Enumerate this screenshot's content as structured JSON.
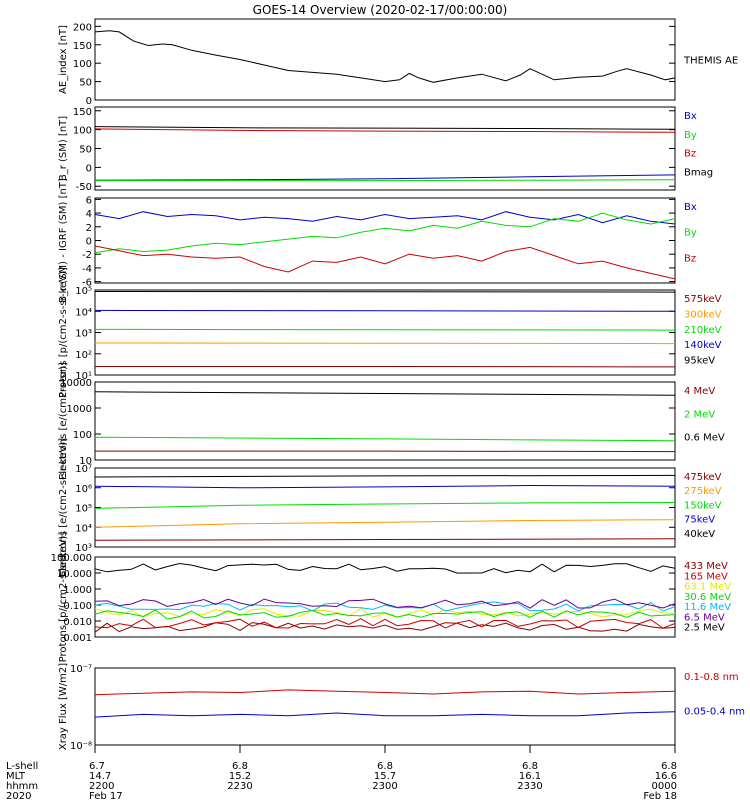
{
  "title": "GOES-14 Overview (2020-02-17/00:00:00)",
  "time_axis": {
    "row_labels": [
      "L-shell",
      "MLT",
      "hhmm",
      "2020"
    ],
    "ticks": [
      {
        "lshell": "6.7",
        "mlt": "14.7",
        "hhmm": "2200",
        "date": "Feb 17"
      },
      {
        "lshell": "6.8",
        "mlt": "15.2",
        "hhmm": "2230",
        "date": ""
      },
      {
        "lshell": "6.8",
        "mlt": "15.7",
        "hhmm": "2300",
        "date": ""
      },
      {
        "lshell": "6.8",
        "mlt": "16.1",
        "hhmm": "2330",
        "date": ""
      },
      {
        "lshell": "6.8",
        "mlt": "16.6",
        "hhmm": "0000",
        "date": "Feb 18"
      }
    ]
  },
  "colors": {
    "black": "#000000",
    "red": "#cc0000",
    "green": "#00dd00",
    "blue": "#0000cc",
    "orange": "#ff9900",
    "yellow": "#e8e800",
    "cyan": "#00bbee",
    "purple": "#660099",
    "darkred": "#880000",
    "brown": "#993300"
  },
  "chart_data": [
    {
      "type": "line",
      "ylabel": "AE_index [nT]",
      "yscale": "linear",
      "ylim": [
        0,
        220
      ],
      "yticks": [
        0,
        50,
        100,
        150,
        200
      ],
      "ytick_labels": [
        "0",
        "50",
        "100",
        "150",
        "200"
      ],
      "xlim": [
        0,
        120
      ],
      "series": [
        {
          "name": "THEMIS AE",
          "color": "#000000",
          "x": [
            0,
            3,
            5,
            8,
            11,
            14,
            16,
            20,
            25,
            30,
            35,
            40,
            45,
            50,
            55,
            60,
            63,
            65,
            67,
            70,
            75,
            80,
            85,
            88,
            90,
            95,
            100,
            105,
            108,
            110,
            115,
            118,
            120
          ],
          "y": [
            185,
            188,
            185,
            160,
            148,
            152,
            150,
            135,
            122,
            110,
            95,
            80,
            75,
            70,
            60,
            50,
            55,
            72,
            60,
            48,
            60,
            70,
            52,
            68,
            85,
            55,
            62,
            65,
            78,
            85,
            68,
            55,
            60
          ]
        }
      ]
    },
    {
      "type": "line",
      "ylabel": "B_r (SM) [nT]",
      "yscale": "linear",
      "ylim": [
        -60,
        160
      ],
      "yticks": [
        -50,
        0,
        50,
        100,
        150
      ],
      "ytick_labels": [
        "-50",
        "0",
        "50",
        "100",
        "150"
      ],
      "xlim": [
        0,
        120
      ],
      "series": [
        {
          "name": "Bx",
          "color": "#0000cc",
          "x": [
            0,
            30,
            60,
            90,
            120
          ],
          "y": [
            -34,
            -33,
            -30,
            -25,
            -20
          ]
        },
        {
          "name": "By",
          "color": "#00dd00",
          "x": [
            0,
            30,
            60,
            90,
            120
          ],
          "y": [
            -35,
            -35,
            -35,
            -34,
            -33
          ]
        },
        {
          "name": "Bz",
          "color": "#cc0000",
          "x": [
            0,
            30,
            60,
            90,
            120
          ],
          "y": [
            102,
            98,
            96,
            95,
            93
          ]
        },
        {
          "name": "Bmag",
          "color": "#000000",
          "x": [
            0,
            30,
            60,
            90,
            120
          ],
          "y": [
            108,
            105,
            104,
            103,
            101
          ]
        }
      ]
    },
    {
      "type": "line",
      "ylabel": "B_r (SM) - IGRF (SM) [nT]",
      "yscale": "linear",
      "ylim": [
        -6.2,
        6.2
      ],
      "yticks": [
        -6,
        -4,
        -2,
        0,
        2,
        4,
        6
      ],
      "ytick_labels": [
        "-6",
        "-4",
        "-2",
        "0",
        "2",
        "4",
        "6"
      ],
      "xlim": [
        0,
        120
      ],
      "series": [
        {
          "name": "Bx",
          "color": "#0000cc",
          "x": [
            0,
            5,
            10,
            15,
            20,
            25,
            30,
            35,
            40,
            45,
            50,
            55,
            60,
            65,
            70,
            75,
            80,
            85,
            90,
            95,
            100,
            105,
            110,
            115,
            120
          ],
          "y": [
            3.8,
            3.2,
            4.2,
            3.5,
            3.8,
            3.6,
            3.0,
            3.4,
            3.2,
            2.8,
            3.5,
            3.0,
            3.8,
            3.2,
            3.4,
            3.6,
            3.0,
            4.2,
            3.4,
            3.0,
            3.8,
            2.6,
            3.6,
            2.8,
            2.4
          ]
        },
        {
          "name": "By",
          "color": "#00dd00",
          "x": [
            0,
            5,
            10,
            15,
            20,
            25,
            30,
            35,
            40,
            45,
            50,
            55,
            60,
            65,
            70,
            75,
            80,
            85,
            90,
            95,
            100,
            105,
            110,
            115,
            120
          ],
          "y": [
            -1.8,
            -1.2,
            -1.6,
            -1.4,
            -0.8,
            -0.4,
            -0.6,
            -0.2,
            0.2,
            0.6,
            0.4,
            1.2,
            1.8,
            1.4,
            2.2,
            1.8,
            2.8,
            2.2,
            2.0,
            3.2,
            2.8,
            4.0,
            3.0,
            2.4,
            3.2
          ]
        },
        {
          "name": "Bz",
          "color": "#cc0000",
          "x": [
            0,
            5,
            10,
            15,
            20,
            25,
            30,
            35,
            40,
            45,
            50,
            55,
            60,
            65,
            70,
            75,
            80,
            85,
            90,
            95,
            100,
            105,
            110,
            115,
            120
          ],
          "y": [
            -0.8,
            -1.5,
            -2.2,
            -2.0,
            -2.4,
            -2.6,
            -2.4,
            -3.8,
            -4.6,
            -3.0,
            -3.2,
            -2.4,
            -3.4,
            -2.0,
            -2.6,
            -2.2,
            -3.0,
            -1.6,
            -1.0,
            -2.2,
            -3.4,
            -3.0,
            -4.0,
            -4.8,
            -5.6
          ]
        }
      ]
    },
    {
      "type": "line",
      "ylabel": "Protons [p/(cm2-s-sr-keV)]",
      "yscale": "log",
      "ylim": [
        10,
        100000
      ],
      "yticks": [
        10,
        100,
        1000,
        10000,
        100000
      ],
      "ytick_labels": [
        "10¹",
        "10²",
        "10³",
        "10⁴",
        "10⁵"
      ],
      "xlim": [
        0,
        120
      ],
      "series": [
        {
          "name": "575keV",
          "color": "#880000",
          "x": [
            0,
            60,
            120
          ],
          "y": [
            25,
            25,
            24
          ]
        },
        {
          "name": "300keV",
          "color": "#ff9900",
          "x": [
            0,
            60,
            120
          ],
          "y": [
            320,
            315,
            300
          ]
        },
        {
          "name": "210keV",
          "color": "#00dd00",
          "x": [
            0,
            60,
            120
          ],
          "y": [
            1400,
            1350,
            1300
          ]
        },
        {
          "name": "140keV",
          "color": "#0000cc",
          "x": [
            0,
            60,
            120
          ],
          "y": [
            11000,
            10500,
            10000
          ]
        },
        {
          "name": "95keV",
          "color": "#000000",
          "x": [
            0,
            60,
            120
          ],
          "y": [
            85000,
            82000,
            80000
          ]
        }
      ]
    },
    {
      "type": "line",
      "ylabel": "Electrons [e/(cm2-s-sr)]",
      "yscale": "log",
      "ylim": [
        10,
        10000
      ],
      "yticks": [
        10,
        100,
        1000,
        10000
      ],
      "ytick_labels": [
        "10",
        "100",
        "1000",
        "10000"
      ],
      "xlim": [
        0,
        120
      ],
      "series": [
        {
          "name": "4 MeV",
          "color": "#880000",
          "x": [
            0,
            60,
            120
          ],
          "y": [
            22,
            22,
            21
          ]
        },
        {
          "name": "2 MeV",
          "color": "#00dd00",
          "x": [
            0,
            60,
            120
          ],
          "y": [
            75,
            65,
            55
          ]
        },
        {
          "name": "0.6 MeV",
          "color": "#000000",
          "x": [
            0,
            60,
            120
          ],
          "y": [
            4200,
            3600,
            3100
          ]
        }
      ]
    },
    {
      "type": "line",
      "ylabel": "Electrons [e/(cm2-s-sr-keV)]",
      "yscale": "log",
      "ylim": [
        1000,
        10000000
      ],
      "yticks": [
        1000,
        10000,
        100000,
        1000000,
        10000000
      ],
      "ytick_labels": [
        "10³",
        "10⁴",
        "10⁵",
        "10⁶",
        "10⁷"
      ],
      "xlim": [
        0,
        120
      ],
      "series": [
        {
          "name": "475keV",
          "color": "#880000",
          "x": [
            0,
            60,
            120
          ],
          "y": [
            2200,
            2400,
            2600
          ]
        },
        {
          "name": "275keV",
          "color": "#ff9900",
          "x": [
            0,
            30,
            60,
            90,
            120
          ],
          "y": [
            10000,
            15000,
            18000,
            22000,
            24000
          ]
        },
        {
          "name": "150keV",
          "color": "#00dd00",
          "x": [
            0,
            30,
            60,
            90,
            120
          ],
          "y": [
            90000,
            130000,
            150000,
            170000,
            180000
          ]
        },
        {
          "name": "75keV",
          "color": "#0000cc",
          "x": [
            0,
            30,
            60,
            90,
            120
          ],
          "y": [
            1200000,
            1000000,
            1100000,
            1300000,
            1200000
          ]
        },
        {
          "name": "40keV",
          "color": "#000000",
          "x": [
            0,
            60,
            120
          ],
          "y": [
            3500000,
            4000000,
            4200000
          ]
        }
      ]
    },
    {
      "type": "line",
      "ylabel": "Protons [p/(cm2-s-sr-keV)]",
      "yscale": "log",
      "ylim": [
        0.001,
        100
      ],
      "yticks": [
        0.001,
        0.01,
        0.1,
        1,
        10,
        100
      ],
      "ytick_labels": [
        "0.001",
        "0.010",
        "0.100",
        "1.000",
        "10.000",
        "100.000"
      ],
      "xlim": [
        0,
        120
      ],
      "series": [
        {
          "name": "433 MeV",
          "color": "#880000",
          "x": [
            0,
            60,
            120
          ],
          "y": [
            0.004,
            0.004,
            0.004
          ]
        },
        {
          "name": "165 MeV",
          "color": "#cc0000",
          "x": [
            0,
            60,
            120
          ],
          "y": [
            0.007,
            0.007,
            0.007
          ]
        },
        {
          "name": "63.1 MeV",
          "color": "#e8e800",
          "x": [
            0,
            60,
            120
          ],
          "y": [
            0.03,
            0.03,
            0.03
          ]
        },
        {
          "name": "30.6 MeV",
          "color": "#00dd00",
          "x": [
            0,
            60,
            120
          ],
          "y": [
            0.025,
            0.022,
            0.025
          ]
        },
        {
          "name": "11.6 MeV",
          "color": "#00bbee",
          "x": [
            0,
            60,
            120
          ],
          "y": [
            0.08,
            0.08,
            0.08
          ]
        },
        {
          "name": "6.5 MeV",
          "color": "#660099",
          "x": [
            0,
            60,
            120
          ],
          "y": [
            0.12,
            0.12,
            0.12
          ]
        },
        {
          "name": "2.5 MeV",
          "color": "#000000",
          "x": [
            0,
            60,
            120
          ],
          "y": [
            20,
            19,
            20
          ]
        }
      ]
    },
    {
      "type": "line",
      "ylabel": "Xray Flux [W/m2]",
      "yscale": "log",
      "ylim": [
        1e-08,
        1e-07
      ],
      "yticks": [
        1e-08,
        1e-07
      ],
      "ytick_labels": [
        "10⁻⁸",
        "10⁻⁷"
      ],
      "xlim": [
        0,
        120
      ],
      "series": [
        {
          "name": "0.1-0.8 nm",
          "color": "#cc0000",
          "x": [
            0,
            10,
            20,
            30,
            40,
            50,
            60,
            70,
            80,
            90,
            100,
            110,
            120
          ],
          "y": [
            4.5e-08,
            4.7e-08,
            4.9e-08,
            4.8e-08,
            5.2e-08,
            5e-08,
            4.8e-08,
            4.6e-08,
            4.9e-08,
            5e-08,
            4.6e-08,
            4.8e-08,
            5e-08
          ]
        },
        {
          "name": "0.05-0.4 nm",
          "color": "#0000cc",
          "x": [
            0,
            10,
            20,
            30,
            40,
            50,
            60,
            70,
            80,
            90,
            100,
            110,
            120
          ],
          "y": [
            2.3e-08,
            2.5e-08,
            2.4e-08,
            2.5e-08,
            2.4e-08,
            2.6e-08,
            2.4e-08,
            2.4e-08,
            2.5e-08,
            2.4e-08,
            2.4e-08,
            2.6e-08,
            2.7e-08
          ]
        }
      ]
    }
  ]
}
